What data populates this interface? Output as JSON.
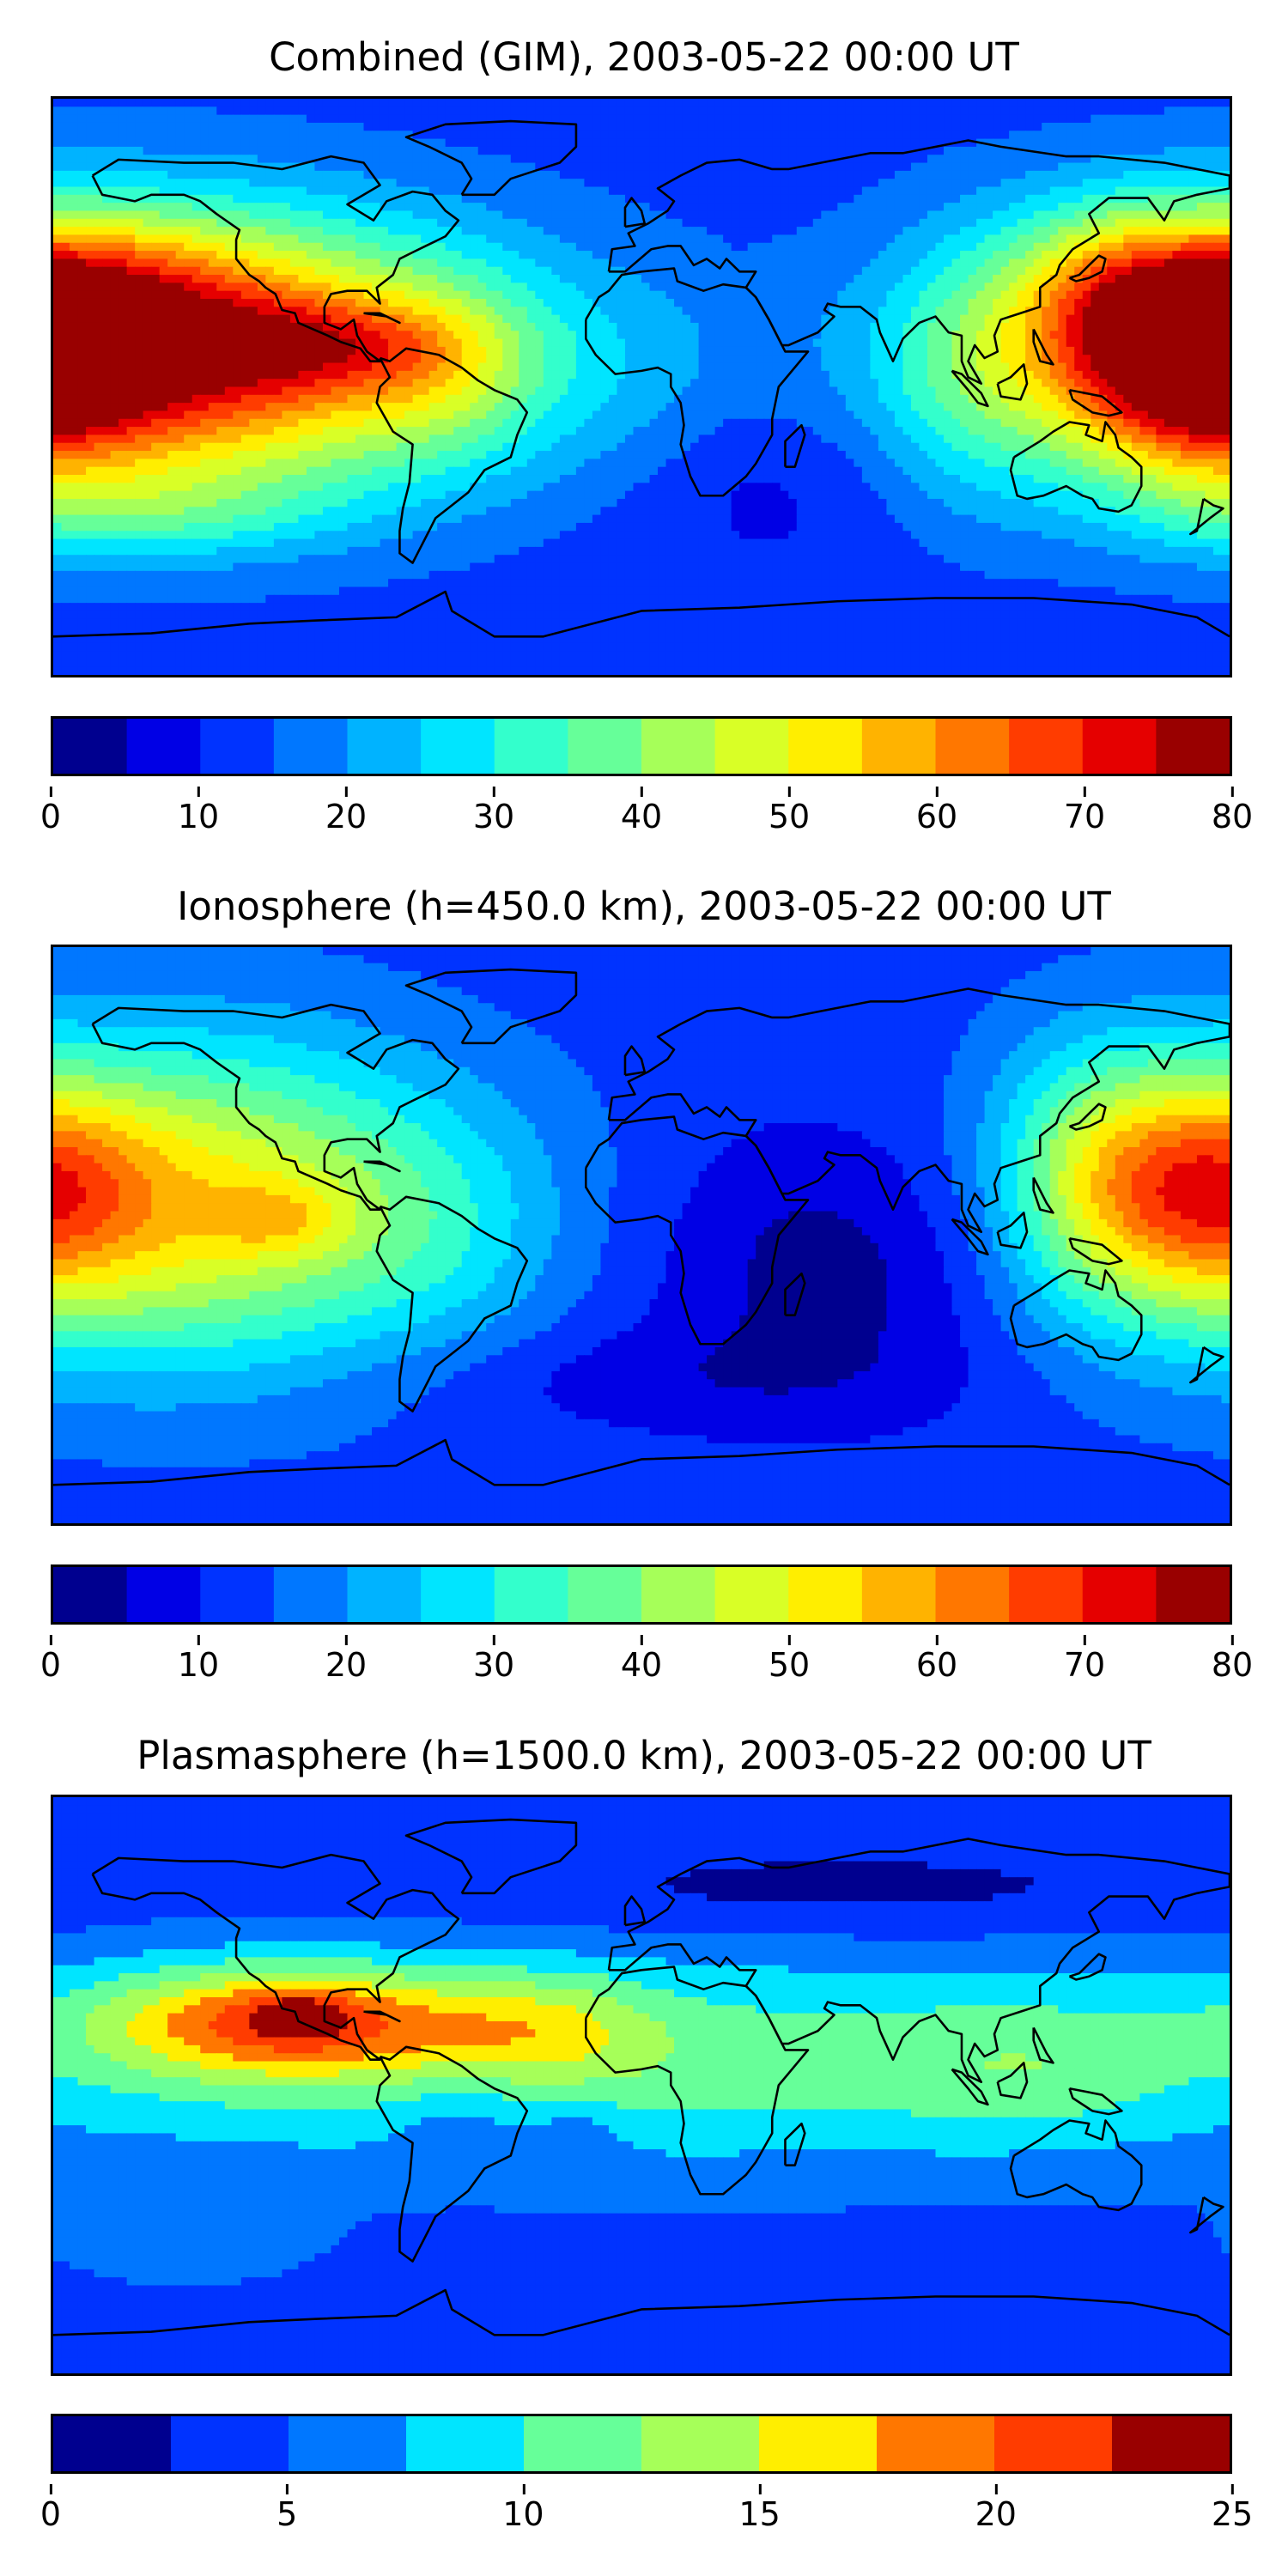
{
  "panels": [
    {
      "title": "Combined (GIM), 2003-05-22 00:00 UT",
      "colorbar": {
        "ticks": [
          "0",
          "10",
          "20",
          "30",
          "40",
          "50",
          "60",
          "70",
          "80"
        ],
        "vmin": 0,
        "vmax": 80,
        "step": 5
      },
      "field": {
        "background": 2,
        "blobs": [
          {
            "lon": -150,
            "lat": 10,
            "sx": 70,
            "sy": 30,
            "h": 13
          },
          {
            "lon": -95,
            "lat": 13,
            "sx": 30,
            "sy": 10,
            "h": 3
          },
          {
            "lon": -165,
            "lat": 33,
            "sx": 35,
            "sy": 15,
            "h": 2
          },
          {
            "lon": 170,
            "lat": 10,
            "sx": 25,
            "sy": 25,
            "h": 7
          },
          {
            "lon": 140,
            "lat": 30,
            "sx": 20,
            "sy": 20,
            "h": 3
          },
          {
            "lon": 100,
            "lat": 5,
            "sx": 20,
            "sy": 30,
            "h": 2
          },
          {
            "lon": -60,
            "lat": 5,
            "sx": 20,
            "sy": 20,
            "h": 2
          },
          {
            "lon": 0,
            "lat": 5,
            "sx": 40,
            "sy": 25,
            "h": 1
          },
          {
            "lon": 40,
            "lat": -30,
            "sx": 30,
            "sy": 20,
            "h": -1
          },
          {
            "lon": -150,
            "lat": -40,
            "sx": 40,
            "sy": 10,
            "h": 2
          }
        ]
      }
    },
    {
      "title": "Ionosphere  (h=450.0 km), 2003-05-22 00:00 UT",
      "colorbar": {
        "ticks": [
          "0",
          "10",
          "20",
          "30",
          "40",
          "50",
          "60",
          "70",
          "80"
        ],
        "vmin": 0,
        "vmax": 80,
        "step": 5
      },
      "field": {
        "background": 2,
        "blobs": [
          {
            "lon": -140,
            "lat": 10,
            "sx": 60,
            "sy": 35,
            "h": 8
          },
          {
            "lon": -110,
            "lat": 5,
            "sx": 15,
            "sy": 8,
            "h": 2
          },
          {
            "lon": 170,
            "lat": 15,
            "sx": 25,
            "sy": 25,
            "h": 6
          },
          {
            "lon": 135,
            "lat": 20,
            "sx": 20,
            "sy": 30,
            "h": 3
          },
          {
            "lon": -60,
            "lat": 0,
            "sx": 25,
            "sy": 25,
            "h": 1
          },
          {
            "lon": 60,
            "lat": -10,
            "sx": 40,
            "sy": 30,
            "h": -2
          },
          {
            "lon": 0,
            "lat": -45,
            "sx": 60,
            "sy": 12,
            "h": -1
          }
        ]
      }
    },
    {
      "title": "Plasmasphere (h=1500.0 km), 2003-05-22 00:00 UT",
      "colorbar": {
        "ticks": [
          "0",
          "5",
          "10",
          "15",
          "20",
          "25"
        ],
        "vmin": 0,
        "vmax": 25,
        "step": 2.5
      },
      "field": {
        "background": 1,
        "blobs": [
          {
            "lon": 0,
            "lat": 8,
            "sx": 200,
            "sy": 25,
            "h": 3
          },
          {
            "lon": -110,
            "lat": 20,
            "sx": 40,
            "sy": 12,
            "h": 5
          },
          {
            "lon": -105,
            "lat": 22,
            "sx": 10,
            "sy": 5,
            "h": 2
          },
          {
            "lon": -30,
            "lat": 18,
            "sx": 25,
            "sy": 12,
            "h": 2
          },
          {
            "lon": 120,
            "lat": 5,
            "sx": 30,
            "sy": 15,
            "h": 1
          },
          {
            "lon": -55,
            "lat": -10,
            "sx": 15,
            "sy": 10,
            "h": -1
          },
          {
            "lon": -20,
            "lat": -15,
            "sx": 10,
            "sy": 8,
            "h": -1
          },
          {
            "lon": -140,
            "lat": -50,
            "sx": 30,
            "sy": 10,
            "h": 1
          },
          {
            "lon": 60,
            "lat": 60,
            "sx": 80,
            "sy": 10,
            "h": -1
          }
        ]
      }
    }
  ],
  "colormap": [
    "#00008f",
    "#0000e5",
    "#0033ff",
    "#0077ff",
    "#00b3ff",
    "#00e5ff",
    "#33ffcc",
    "#66ff99",
    "#a6ff59",
    "#d9ff26",
    "#ffee00",
    "#ffb300",
    "#ff7700",
    "#ff3c00",
    "#e50000",
    "#990000"
  ],
  "coastline_color": "#000000"
}
